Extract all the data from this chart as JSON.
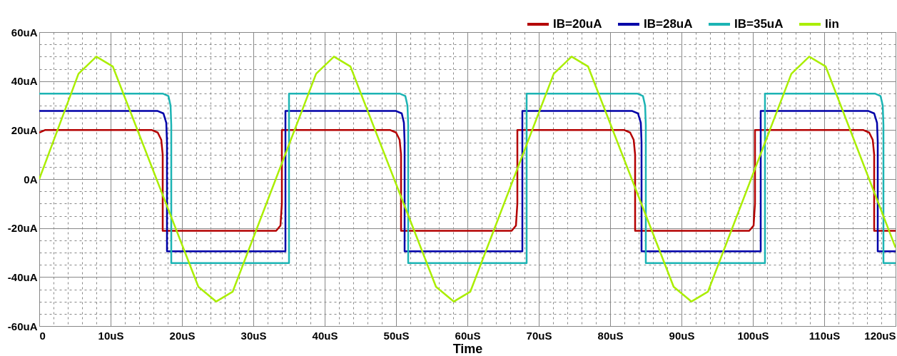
{
  "chart_data": {
    "type": "line",
    "xlabel": "Time",
    "xlim": [
      0,
      120
    ],
    "xticks": [
      {
        "value": 0,
        "label": "0"
      },
      {
        "value": 2,
        "label": null
      },
      {
        "value": 4,
        "label": null
      },
      {
        "value": 6,
        "label": null
      },
      {
        "value": 8,
        "label": null
      },
      {
        "value": 10,
        "label": "10uS"
      },
      {
        "value": 12,
        "label": null
      },
      {
        "value": 14,
        "label": null
      },
      {
        "value": 16,
        "label": null
      },
      {
        "value": 18,
        "label": null
      },
      {
        "value": 20,
        "label": "20uS"
      },
      {
        "value": 22,
        "label": null
      },
      {
        "value": 24,
        "label": null
      },
      {
        "value": 26,
        "label": null
      },
      {
        "value": 28,
        "label": null
      },
      {
        "value": 30,
        "label": "30uS"
      },
      {
        "value": 32,
        "label": null
      },
      {
        "value": 34,
        "label": null
      },
      {
        "value": 36,
        "label": null
      },
      {
        "value": 38,
        "label": null
      },
      {
        "value": 40,
        "label": "40uS"
      },
      {
        "value": 42,
        "label": null
      },
      {
        "value": 44,
        "label": null
      },
      {
        "value": 46,
        "label": null
      },
      {
        "value": 48,
        "label": null
      },
      {
        "value": 50,
        "label": "50uS"
      },
      {
        "value": 52,
        "label": null
      },
      {
        "value": 54,
        "label": null
      },
      {
        "value": 56,
        "label": null
      },
      {
        "value": 58,
        "label": null
      },
      {
        "value": 60,
        "label": "60uS"
      },
      {
        "value": 62,
        "label": null
      },
      {
        "value": 64,
        "label": null
      },
      {
        "value": 66,
        "label": null
      },
      {
        "value": 68,
        "label": null
      },
      {
        "value": 70,
        "label": "70uS"
      },
      {
        "value": 72,
        "label": null
      },
      {
        "value": 74,
        "label": null
      },
      {
        "value": 76,
        "label": null
      },
      {
        "value": 78,
        "label": null
      },
      {
        "value": 80,
        "label": "80uS"
      },
      {
        "value": 82,
        "label": null
      },
      {
        "value": 84,
        "label": null
      },
      {
        "value": 86,
        "label": null
      },
      {
        "value": 88,
        "label": null
      },
      {
        "value": 90,
        "label": "90uS"
      },
      {
        "value": 92,
        "label": null
      },
      {
        "value": 94,
        "label": null
      },
      {
        "value": 96,
        "label": null
      },
      {
        "value": 98,
        "label": null
      },
      {
        "value": 100,
        "label": "100uS"
      },
      {
        "value": 102,
        "label": null
      },
      {
        "value": 104,
        "label": null
      },
      {
        "value": 106,
        "label": null
      },
      {
        "value": 108,
        "label": null
      },
      {
        "value": 110,
        "label": "110uS"
      },
      {
        "value": 112,
        "label": null
      },
      {
        "value": 114,
        "label": null
      },
      {
        "value": 116,
        "label": null
      },
      {
        "value": 118,
        "label": null
      },
      {
        "value": 120,
        "label": "120uS"
      }
    ],
    "ylim": [
      -60,
      60
    ],
    "yticks": [
      {
        "value": -60,
        "label": "-60uA"
      },
      {
        "value": -55,
        "label": null
      },
      {
        "value": -50,
        "label": null
      },
      {
        "value": -45,
        "label": null
      },
      {
        "value": -40,
        "label": "-40uA"
      },
      {
        "value": -35,
        "label": null
      },
      {
        "value": -30,
        "label": null
      },
      {
        "value": -25,
        "label": null
      },
      {
        "value": -20,
        "label": "-20uA"
      },
      {
        "value": -15,
        "label": null
      },
      {
        "value": -10,
        "label": null
      },
      {
        "value": -5,
        "label": null
      },
      {
        "value": 0,
        "label": "0A"
      },
      {
        "value": 5,
        "label": null
      },
      {
        "value": 10,
        "label": null
      },
      {
        "value": 15,
        "label": null
      },
      {
        "value": 20,
        "label": "20uA"
      },
      {
        "value": 25,
        "label": null
      },
      {
        "value": 30,
        "label": null
      },
      {
        "value": 35,
        "label": null
      },
      {
        "value": 40,
        "label": "40uA"
      },
      {
        "value": 45,
        "label": null
      },
      {
        "value": 50,
        "label": null
      },
      {
        "value": 55,
        "label": null
      },
      {
        "value": 60,
        "label": "60uA"
      }
    ],
    "grid": true,
    "legend": "top right",
    "marker": "none",
    "line_style": "solid",
    "series": [
      {
        "name": "IB=20uA",
        "color": "#b40000",
        "x": [
          0,
          0.8,
          15.8,
          16.6,
          17.1,
          17.3,
          17.3,
          33.2,
          33.8,
          34.0,
          34.0,
          49.2,
          50.0,
          50.5,
          50.7,
          50.7,
          66.2,
          66.8,
          67.0,
          67.0,
          82.0,
          82.8,
          83.3,
          83.5,
          83.5,
          99.5,
          100.1,
          100.3,
          100.3,
          115.5,
          116.3,
          116.8,
          117.0,
          117.0,
          120
        ],
        "values": [
          19,
          20,
          20,
          19,
          16,
          10,
          -21.1,
          -21.1,
          -19,
          -10,
          20,
          20,
          19,
          16,
          10,
          -21.1,
          -21.1,
          -19,
          -10,
          20,
          20,
          19,
          16,
          10,
          -21.1,
          -21.1,
          -19,
          -10,
          20,
          20,
          19,
          16,
          10,
          -21.1,
          -21.1
        ]
      },
      {
        "name": "IB=28uA",
        "color": "#0000a8",
        "x": [
          0,
          16.6,
          17.4,
          17.8,
          17.9,
          17.9,
          34.5,
          34.5,
          50.0,
          50.8,
          51.1,
          51.2,
          51.2,
          67.7,
          67.7,
          83.1,
          83.9,
          84.3,
          84.4,
          84.4,
          101.1,
          101.1,
          116.2,
          117.0,
          117.4,
          117.5,
          117.5,
          120
        ],
        "values": [
          27.8,
          27.8,
          26.8,
          23,
          15,
          -29.5,
          -29.5,
          27.8,
          27.8,
          26.8,
          23,
          15,
          -29.5,
          -29.5,
          27.8,
          27.8,
          26.8,
          23,
          15,
          -29.5,
          -29.5,
          27.8,
          27.8,
          26.8,
          23,
          15,
          -29.5,
          -29.5
        ]
      },
      {
        "name": "IB=35uA",
        "color": "#1cb4b4",
        "x": [
          0,
          17.3,
          18.1,
          18.4,
          18.5,
          18.5,
          35.0,
          35.0,
          50.5,
          51.3,
          51.6,
          51.7,
          51.7,
          68.3,
          68.3,
          83.8,
          84.6,
          84.9,
          85.0,
          85.0,
          101.7,
          101.7,
          117.1,
          117.9,
          118.2,
          118.3,
          118.3,
          120
        ],
        "values": [
          34.9,
          34.9,
          33.9,
          30,
          22,
          -34.3,
          -34.3,
          34.9,
          34.9,
          33.9,
          30,
          22,
          -34.3,
          -34.3,
          34.9,
          34.9,
          33.9,
          30,
          22,
          -34.3,
          -34.3,
          34.9,
          34.9,
          33.9,
          30,
          22,
          -34.3,
          -34.3
        ]
      },
      {
        "name": "Iin",
        "color": "#aaee00",
        "x": [
          0,
          5.5,
          8.0,
          10.3,
          22.3,
          24.8,
          27.1,
          38.8,
          41.3,
          43.6,
          55.6,
          58.1,
          60.4,
          72.1,
          74.6,
          76.9,
          88.9,
          91.4,
          93.7,
          105.4,
          107.9,
          110.2,
          120
        ],
        "values": [
          0,
          43,
          50,
          46,
          -44,
          -50,
          -46,
          43,
          50,
          46,
          -44,
          -50,
          -46,
          43,
          50,
          46,
          -44,
          -50,
          -46,
          43,
          50,
          46,
          -28
        ]
      }
    ]
  }
}
